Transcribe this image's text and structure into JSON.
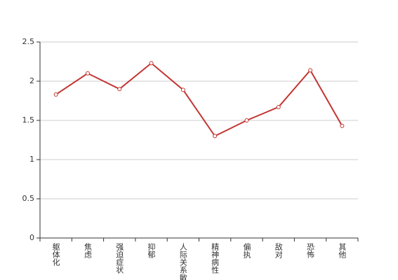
{
  "chart_data": {
    "type": "line",
    "categories": [
      "躯体化",
      "焦虑",
      "强迫症状",
      "抑郁",
      "人际关系敏感",
      "精神病性",
      "偏执",
      "敌对",
      "恐怖",
      "其他"
    ],
    "values": [
      1.83,
      2.1,
      1.9,
      2.23,
      1.89,
      1.3,
      1.5,
      1.67,
      2.14,
      1.43
    ],
    "color": "#c23531",
    "ylim": [
      0,
      2.5
    ],
    "yticks": [
      0,
      0.5,
      1,
      1.5,
      2,
      2.5
    ],
    "grid": true
  }
}
